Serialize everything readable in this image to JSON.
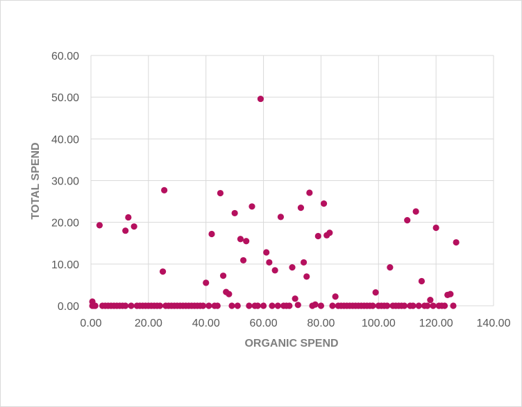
{
  "chart_data": {
    "type": "scatter",
    "title": "",
    "xlabel": "ORGANIC SPEND",
    "ylabel": "TOTAL SPEND",
    "xlim": [
      0,
      140
    ],
    "ylim": [
      0,
      60
    ],
    "x_ticks": [
      "0.00",
      "20.00",
      "40.00",
      "60.00",
      "80.00",
      "100.00",
      "120.00",
      "140.00"
    ],
    "y_ticks": [
      "0.00",
      "10.00",
      "20.00",
      "30.00",
      "40.00",
      "50.00",
      "60.00"
    ],
    "grid": true,
    "legend": "none",
    "colors": {
      "point": "#b5105e",
      "grid": "#d9d9d9",
      "tick_text": "#595959",
      "axis_title": "#7f7f7f"
    },
    "series": [
      {
        "points": [
          [
            0.5,
            1.0
          ],
          [
            3,
            19.3
          ],
          [
            12,
            18.0
          ],
          [
            13,
            21.2
          ],
          [
            15,
            19.0
          ],
          [
            25,
            8.2
          ],
          [
            25.5,
            27.7
          ],
          [
            40,
            5.5
          ],
          [
            42,
            17.2
          ],
          [
            45,
            27.0
          ],
          [
            46,
            7.2
          ],
          [
            47,
            3.3
          ],
          [
            48,
            2.8
          ],
          [
            50,
            22.2
          ],
          [
            52,
            16.0
          ],
          [
            53,
            10.9
          ],
          [
            54,
            15.5
          ],
          [
            56,
            23.8
          ],
          [
            59,
            49.6
          ],
          [
            61,
            12.8
          ],
          [
            62,
            10.4
          ],
          [
            64,
            8.5
          ],
          [
            66,
            21.3
          ],
          [
            70,
            9.2
          ],
          [
            71,
            1.7
          ],
          [
            72,
            0.2
          ],
          [
            73,
            23.5
          ],
          [
            74,
            10.4
          ],
          [
            75,
            7.0
          ],
          [
            76,
            27.1
          ],
          [
            78,
            0.3
          ],
          [
            79,
            16.7
          ],
          [
            81,
            24.5
          ],
          [
            82,
            16.9
          ],
          [
            83,
            17.5
          ],
          [
            85,
            2.2
          ],
          [
            99,
            3.2
          ],
          [
            104,
            9.2
          ],
          [
            110,
            20.5
          ],
          [
            113,
            22.6
          ],
          [
            115,
            5.9
          ],
          [
            118,
            1.4
          ],
          [
            120,
            18.7
          ],
          [
            124,
            2.6
          ],
          [
            125,
            2.8
          ],
          [
            127,
            15.2
          ],
          [
            0.5,
            0
          ],
          [
            1,
            0
          ],
          [
            1.5,
            0
          ],
          [
            4,
            0
          ],
          [
            5,
            0
          ],
          [
            6,
            0
          ],
          [
            7,
            0
          ],
          [
            8,
            0
          ],
          [
            9,
            0
          ],
          [
            10,
            0
          ],
          [
            11,
            0
          ],
          [
            12,
            0
          ],
          [
            14,
            0
          ],
          [
            16,
            0
          ],
          [
            17,
            0
          ],
          [
            18,
            0
          ],
          [
            19,
            0
          ],
          [
            20,
            0
          ],
          [
            21,
            0
          ],
          [
            22,
            0
          ],
          [
            23,
            0
          ],
          [
            24,
            0
          ],
          [
            26,
            0
          ],
          [
            27,
            0
          ],
          [
            28,
            0
          ],
          [
            29,
            0
          ],
          [
            30,
            0
          ],
          [
            31,
            0
          ],
          [
            32,
            0
          ],
          [
            33,
            0
          ],
          [
            34,
            0
          ],
          [
            35,
            0
          ],
          [
            36,
            0
          ],
          [
            37,
            0
          ],
          [
            38,
            0
          ],
          [
            39,
            0
          ],
          [
            41,
            0
          ],
          [
            43,
            0
          ],
          [
            44,
            0
          ],
          [
            49,
            0
          ],
          [
            51,
            0
          ],
          [
            55,
            0
          ],
          [
            57,
            0
          ],
          [
            58,
            0
          ],
          [
            60,
            0
          ],
          [
            63,
            0
          ],
          [
            65,
            0
          ],
          [
            67,
            0
          ],
          [
            68,
            0
          ],
          [
            69,
            0
          ],
          [
            77,
            0
          ],
          [
            80,
            0
          ],
          [
            84,
            0
          ],
          [
            86,
            0
          ],
          [
            87,
            0
          ],
          [
            88,
            0
          ],
          [
            89,
            0
          ],
          [
            90,
            0
          ],
          [
            91,
            0
          ],
          [
            92,
            0
          ],
          [
            93,
            0
          ],
          [
            94,
            0
          ],
          [
            95,
            0
          ],
          [
            96,
            0
          ],
          [
            97,
            0
          ],
          [
            98,
            0
          ],
          [
            100,
            0
          ],
          [
            101,
            0
          ],
          [
            102,
            0
          ],
          [
            103,
            0
          ],
          [
            105,
            0
          ],
          [
            106,
            0
          ],
          [
            107,
            0
          ],
          [
            108,
            0
          ],
          [
            109,
            0
          ],
          [
            111,
            0
          ],
          [
            112,
            0
          ],
          [
            114,
            0
          ],
          [
            116,
            0
          ],
          [
            117,
            0
          ],
          [
            119,
            0
          ],
          [
            121,
            0
          ],
          [
            122,
            0
          ],
          [
            123,
            0
          ],
          [
            126,
            0
          ]
        ]
      }
    ]
  }
}
